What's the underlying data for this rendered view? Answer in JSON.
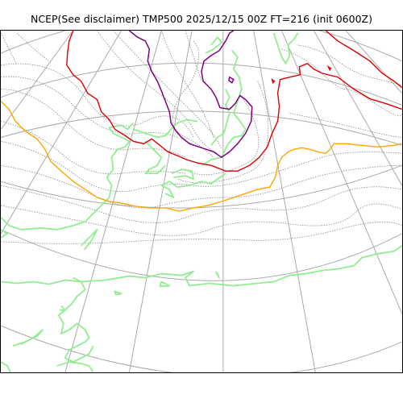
{
  "title": "NCEP(See disclaimer) TMP500 2025/12/15 00Z FT=216 (init 0600Z)",
  "colors": {
    "grid": "#aaaaaa",
    "isotherm": "#888888",
    "coast": "#90ee90",
    "contour_purple": "#800080",
    "contour_red": "#dd0000",
    "contour_orange": "#ffa500"
  }
}
